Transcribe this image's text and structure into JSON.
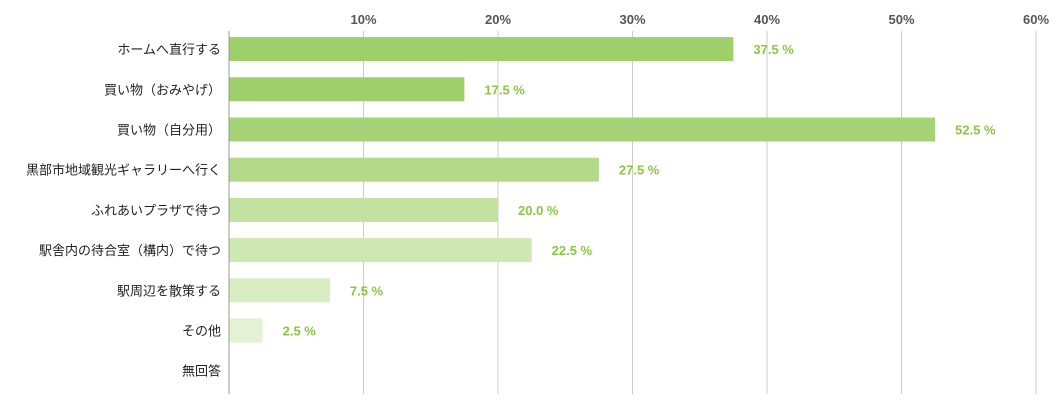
{
  "chart_data": {
    "type": "bar",
    "orientation": "horizontal",
    "categories": [
      "ホームへ直行する",
      "買い物（おみやげ）",
      "買い物（自分用）",
      "黒部市地域観光ギャラリーへ行く",
      "ふれあいプラザで待つ",
      "駅舎内の待合室（構内）で待つ",
      "駅周辺を散策する",
      "その他",
      "無回答"
    ],
    "values": [
      37.5,
      17.5,
      52.5,
      27.5,
      20.0,
      22.5,
      7.5,
      2.5,
      0
    ],
    "value_labels": [
      "37.5 %",
      "17.5 %",
      "52.5 %",
      "27.5 %",
      "20.0 %",
      "22.5 %",
      "7.5 %",
      "2.5 %",
      ""
    ],
    "bar_colors": [
      "#9dcf6b",
      "#9dcf6b",
      "#a6d378",
      "#b2da88",
      "#c2e2a0",
      "#cde8b0",
      "#d8edc0",
      "#e3f2d2",
      "#eef7e4"
    ],
    "xlim": [
      0,
      60
    ],
    "x_ticks": [
      10,
      20,
      30,
      40,
      50,
      60
    ],
    "x_tick_labels": [
      "10%",
      "20%",
      "30%",
      "40%",
      "50%",
      "60%"
    ],
    "grid": true,
    "label_color": "#8cc63f",
    "grid_color": "#cccccc",
    "axis_color": "#999999"
  }
}
